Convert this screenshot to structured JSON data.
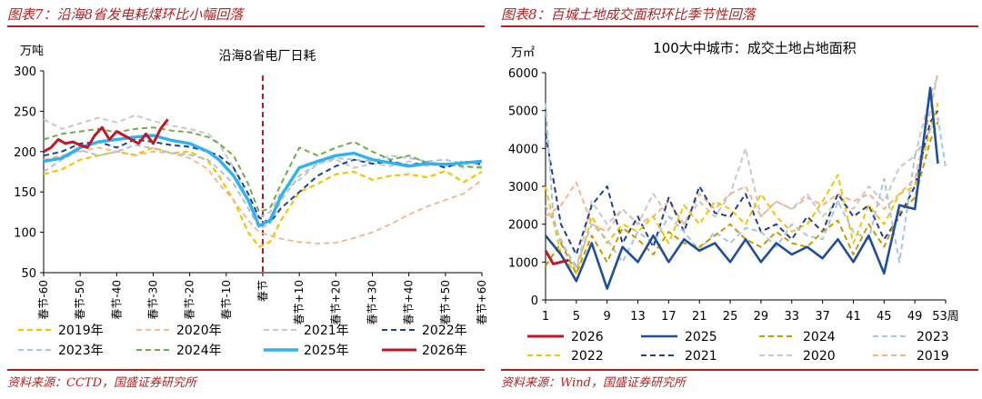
{
  "left_panel": {
    "figure_title": "图表7：沿海8省发电耗煤环比小幅回落",
    "source": "资料来源：CCTD，国盛证券研究所"
  },
  "right_panel": {
    "figure_title": "图表8：百城土地成交面积环比季节性回落",
    "source": "资料来源：Wind，国盛证券研究所"
  },
  "chart_data": [
    {
      "type": "line",
      "title": "沿海8省电厂日耗",
      "ylabel": "万吨",
      "ylim": [
        50,
        300
      ],
      "yticks": [
        50,
        100,
        150,
        200,
        250,
        300
      ],
      "xlim": [
        -60,
        60
      ],
      "xticks": [
        -60,
        -50,
        -40,
        -30,
        -20,
        -10,
        0,
        10,
        20,
        30,
        40,
        50,
        60
      ],
      "xtick_labels": [
        "春节-60",
        "春节-50",
        "春节-40",
        "春节-30",
        "春节-20",
        "春节-10",
        "春节",
        "春节+10",
        "春节+20",
        "春节+30",
        "春节+40",
        "春节+50",
        "春节+60"
      ],
      "marker_line_x": 0,
      "legend_position": "bottom",
      "series": [
        {
          "name": "2019年",
          "color": "#f5c400",
          "dash": "dashed",
          "width": 2.2,
          "x": [
            -60,
            -55,
            -50,
            -45,
            -40,
            -35,
            -30,
            -25,
            -20,
            -15,
            -12,
            -8,
            -4,
            -1,
            2,
            5,
            10,
            15,
            20,
            25,
            30,
            35,
            40,
            45,
            50,
            55,
            60
          ],
          "y": [
            172,
            178,
            190,
            195,
            200,
            196,
            205,
            198,
            200,
            188,
            170,
            140,
            100,
            82,
            88,
            115,
            150,
            160,
            172,
            175,
            165,
            170,
            172,
            168,
            176,
            162,
            175
          ]
        },
        {
          "name": "2020年",
          "color": "#f4b38a",
          "dash": "dashed",
          "width": 1.8,
          "x": [
            -60,
            -55,
            -50,
            -45,
            -40,
            -35,
            -30,
            -25,
            -20,
            -15,
            -12,
            -8,
            -4,
            -1,
            2,
            5,
            10,
            15,
            20,
            25,
            30,
            35,
            40,
            45,
            50,
            55,
            60
          ],
          "y": [
            190,
            195,
            200,
            205,
            200,
            195,
            200,
            198,
            192,
            178,
            160,
            140,
            115,
            100,
            96,
            92,
            88,
            86,
            87,
            93,
            100,
            110,
            122,
            132,
            140,
            148,
            165
          ]
        },
        {
          "name": "2021年",
          "color": "#c8c8c8",
          "dash": "dashed",
          "width": 2.0,
          "x": [
            -60,
            -55,
            -50,
            -45,
            -40,
            -35,
            -30,
            -25,
            -20,
            -15,
            -12,
            -8,
            -4,
            -1,
            2,
            5,
            10,
            15,
            20,
            25,
            30,
            35,
            40,
            45,
            50,
            55,
            60
          ],
          "y": [
            240,
            228,
            235,
            242,
            236,
            245,
            238,
            232,
            228,
            222,
            210,
            180,
            140,
            118,
            125,
            150,
            165,
            185,
            190,
            180,
            185,
            182,
            188,
            182,
            185,
            180,
            182
          ]
        },
        {
          "name": "2022年",
          "color": "#1f3f8f",
          "dash": "dashed",
          "width": 2.0,
          "x": [
            -60,
            -55,
            -50,
            -45,
            -40,
            -35,
            -30,
            -25,
            -20,
            -15,
            -12,
            -8,
            -4,
            -1,
            2,
            5,
            10,
            15,
            20,
            25,
            30,
            35,
            40,
            45,
            50,
            55,
            60
          ],
          "y": [
            195,
            200,
            210,
            212,
            205,
            215,
            212,
            208,
            206,
            200,
            195,
            180,
            148,
            118,
            112,
            130,
            150,
            170,
            182,
            190,
            185,
            188,
            183,
            187,
            180,
            188,
            184
          ]
        },
        {
          "name": "2023年",
          "color": "#a8c4e0",
          "dash": "dashed",
          "width": 2.0,
          "x": [
            -60,
            -55,
            -50,
            -45,
            -40,
            -35,
            -30,
            -25,
            -20,
            -15,
            -12,
            -8,
            -4,
            -1,
            2,
            5,
            10,
            15,
            20,
            25,
            30,
            35,
            40,
            45,
            50,
            55,
            60
          ],
          "y": [
            175,
            190,
            202,
            195,
            200,
            208,
            204,
            198,
            196,
            190,
            178,
            160,
            130,
            105,
            110,
            140,
            170,
            185,
            192,
            190,
            188,
            195,
            192,
            188,
            190,
            185,
            186
          ]
        },
        {
          "name": "2024年",
          "color": "#70ad47",
          "dash": "dashed",
          "width": 2.0,
          "x": [
            -60,
            -55,
            -50,
            -45,
            -40,
            -35,
            -30,
            -25,
            -20,
            -15,
            -12,
            -8,
            -4,
            -1,
            2,
            5,
            10,
            15,
            20,
            25,
            30,
            35,
            40,
            45,
            50,
            55,
            60
          ],
          "y": [
            215,
            222,
            225,
            228,
            224,
            228,
            230,
            226,
            224,
            218,
            210,
            195,
            160,
            125,
            130,
            160,
            205,
            195,
            205,
            212,
            200,
            190,
            195,
            186,
            185,
            182,
            180
          ]
        },
        {
          "name": "2025年",
          "color": "#2eb4ea",
          "dash": "solid",
          "width": 3.4,
          "x": [
            -60,
            -55,
            -50,
            -45,
            -40,
            -35,
            -30,
            -25,
            -20,
            -15,
            -12,
            -8,
            -4,
            -1,
            2,
            5,
            10,
            15,
            20,
            25,
            30,
            35,
            40,
            45,
            50,
            55,
            60
          ],
          "y": [
            188,
            192,
            205,
            212,
            215,
            218,
            220,
            214,
            210,
            200,
            190,
            170,
            140,
            108,
            115,
            145,
            180,
            188,
            195,
            198,
            190,
            186,
            182,
            185,
            184,
            186,
            188
          ]
        },
        {
          "name": "2026年",
          "color": "#c0182a",
          "dash": "solid",
          "width": 3.0,
          "x": [
            -60,
            -58,
            -56,
            -54,
            -52,
            -50,
            -48,
            -46,
            -44,
            -42,
            -40,
            -38,
            -36,
            -34,
            -32,
            -30,
            -28,
            -26
          ],
          "y": [
            200,
            205,
            215,
            210,
            212,
            208,
            205,
            220,
            230,
            215,
            225,
            220,
            215,
            210,
            222,
            210,
            228,
            240
          ]
        }
      ]
    },
    {
      "type": "line",
      "title": "100大中城市：成交土地占地面积",
      "ylabel": "万㎡",
      "ylim": [
        0,
        6000
      ],
      "yticks": [
        0,
        1000,
        2000,
        3000,
        4000,
        5000,
        6000
      ],
      "xlim": [
        1,
        53
      ],
      "xticks": [
        1,
        5,
        9,
        13,
        17,
        21,
        25,
        29,
        33,
        37,
        41,
        45,
        49,
        53
      ],
      "xtick_labels": [
        "1",
        "5",
        "9",
        "13",
        "17",
        "21",
        "25",
        "29",
        "33",
        "37",
        "41",
        "45",
        "49",
        "53周"
      ],
      "legend_position": "bottom",
      "series": [
        {
          "name": "2026",
          "color": "#c0182a",
          "dash": "solid",
          "width": 3.0,
          "x": [
            1,
            2,
            3,
            4
          ],
          "y": [
            1300,
            950,
            1000,
            1050
          ]
        },
        {
          "name": "2025",
          "color": "#1f4e9a",
          "dash": "solid",
          "width": 2.6,
          "x": [
            1,
            3,
            5,
            7,
            9,
            11,
            13,
            15,
            17,
            19,
            21,
            23,
            25,
            27,
            29,
            31,
            33,
            35,
            37,
            39,
            41,
            43,
            45,
            47,
            49,
            51,
            52
          ],
          "y": [
            1700,
            1200,
            500,
            1500,
            300,
            1400,
            1000,
            1700,
            1000,
            1600,
            1300,
            1500,
            1000,
            1600,
            1000,
            1500,
            1200,
            1400,
            1100,
            1600,
            1000,
            1700,
            700,
            2500,
            2400,
            5600,
            3600
          ]
        },
        {
          "name": "2024",
          "color": "#c49a00",
          "dash": "dashed",
          "width": 2.0,
          "x": [
            1,
            3,
            5,
            7,
            9,
            11,
            13,
            15,
            17,
            19,
            21,
            23,
            25,
            27,
            29,
            31,
            33,
            35,
            37,
            39,
            41,
            43,
            45,
            47,
            49,
            51,
            52
          ],
          "y": [
            900,
            1500,
            700,
            1700,
            1000,
            1900,
            1600,
            1200,
            1800,
            1500,
            1400,
            1700,
            2000,
            1600,
            1400,
            1800,
            1500,
            1400,
            1800,
            2100,
            1200,
            2000,
            1400,
            2300,
            2700,
            4200,
            4700
          ]
        },
        {
          "name": "2023",
          "color": "#a8c4e0",
          "dash": "dashed",
          "width": 2.0,
          "x": [
            1,
            2,
            3,
            5,
            7,
            9,
            11,
            13,
            15,
            17,
            19,
            21,
            23,
            25,
            27,
            29,
            31,
            33,
            35,
            37,
            39,
            41,
            43,
            45,
            47,
            49,
            51,
            52,
            53
          ],
          "y": [
            5200,
            2200,
            1500,
            900,
            2000,
            1600,
            1000,
            1800,
            1500,
            2200,
            1800,
            1300,
            1800,
            1500,
            1900,
            1800,
            1400,
            2000,
            1700,
            1600,
            2600,
            1800,
            1600,
            3200,
            1000,
            3800,
            4500,
            4800,
            3500
          ]
        },
        {
          "name": "2022",
          "color": "#f5c400",
          "dash": "dashed",
          "width": 2.0,
          "x": [
            1,
            3,
            5,
            7,
            9,
            11,
            13,
            15,
            17,
            19,
            21,
            23,
            25,
            27,
            29,
            31,
            33,
            35,
            37,
            39,
            41,
            43,
            45,
            47,
            49,
            51,
            52
          ],
          "y": [
            3000,
            1200,
            700,
            2200,
            1500,
            2000,
            1800,
            2200,
            1500,
            2500,
            2000,
            2600,
            2400,
            2000,
            2800,
            2200,
            1800,
            2000,
            2600,
            3300,
            1500,
            2500,
            2000,
            2800,
            3000,
            4500,
            5200
          ]
        },
        {
          "name": "2021",
          "color": "#1f3f8f",
          "dash": "dashed",
          "width": 2.0,
          "x": [
            1,
            3,
            5,
            7,
            9,
            11,
            13,
            15,
            17,
            19,
            21,
            23,
            25,
            27,
            29,
            31,
            33,
            35,
            37,
            39,
            41,
            43,
            45,
            47,
            49,
            51,
            52
          ],
          "y": [
            4400,
            2000,
            1200,
            2500,
            3000,
            1500,
            2200,
            1400,
            2700,
            1800,
            3000,
            2300,
            2200,
            2800,
            1800,
            2000,
            1600,
            2200,
            1800,
            2800,
            2200,
            2500,
            1600,
            2200,
            3000,
            4700,
            5000
          ]
        },
        {
          "name": "2020",
          "color": "#c8c8c8",
          "dash": "dashed",
          "width": 2.0,
          "x": [
            1,
            3,
            5,
            7,
            9,
            11,
            13,
            15,
            17,
            19,
            21,
            23,
            25,
            27,
            29,
            31,
            33,
            35,
            37,
            39,
            41,
            43,
            45,
            47,
            49,
            51,
            52
          ],
          "y": [
            2500,
            1600,
            800,
            2600,
            2000,
            2400,
            2000,
            2800,
            2200,
            2000,
            2600,
            2200,
            2800,
            4000,
            2200,
            2600,
            2400,
            2800,
            2200,
            2600,
            2400,
            3000,
            2600,
            3500,
            3800,
            5400,
            5900
          ]
        },
        {
          "name": "2019",
          "color": "#f4b38a",
          "dash": "dashed",
          "width": 2.0,
          "x": [
            1,
            3,
            5,
            7,
            9,
            11,
            13,
            15,
            17,
            19,
            21,
            23,
            25,
            27,
            29,
            31,
            33,
            35,
            37,
            39,
            41,
            43,
            45,
            47,
            49,
            51,
            52
          ],
          "y": [
            2200,
            2500,
            3100,
            2000,
            1800,
            2400,
            2000,
            2200,
            2600,
            2000,
            2800,
            2400,
            2800,
            3000,
            2200,
            2600,
            2400,
            2700,
            2500,
            2800,
            2600,
            2800,
            2400,
            2800,
            3200,
            5000,
            6000
          ]
        }
      ]
    }
  ]
}
